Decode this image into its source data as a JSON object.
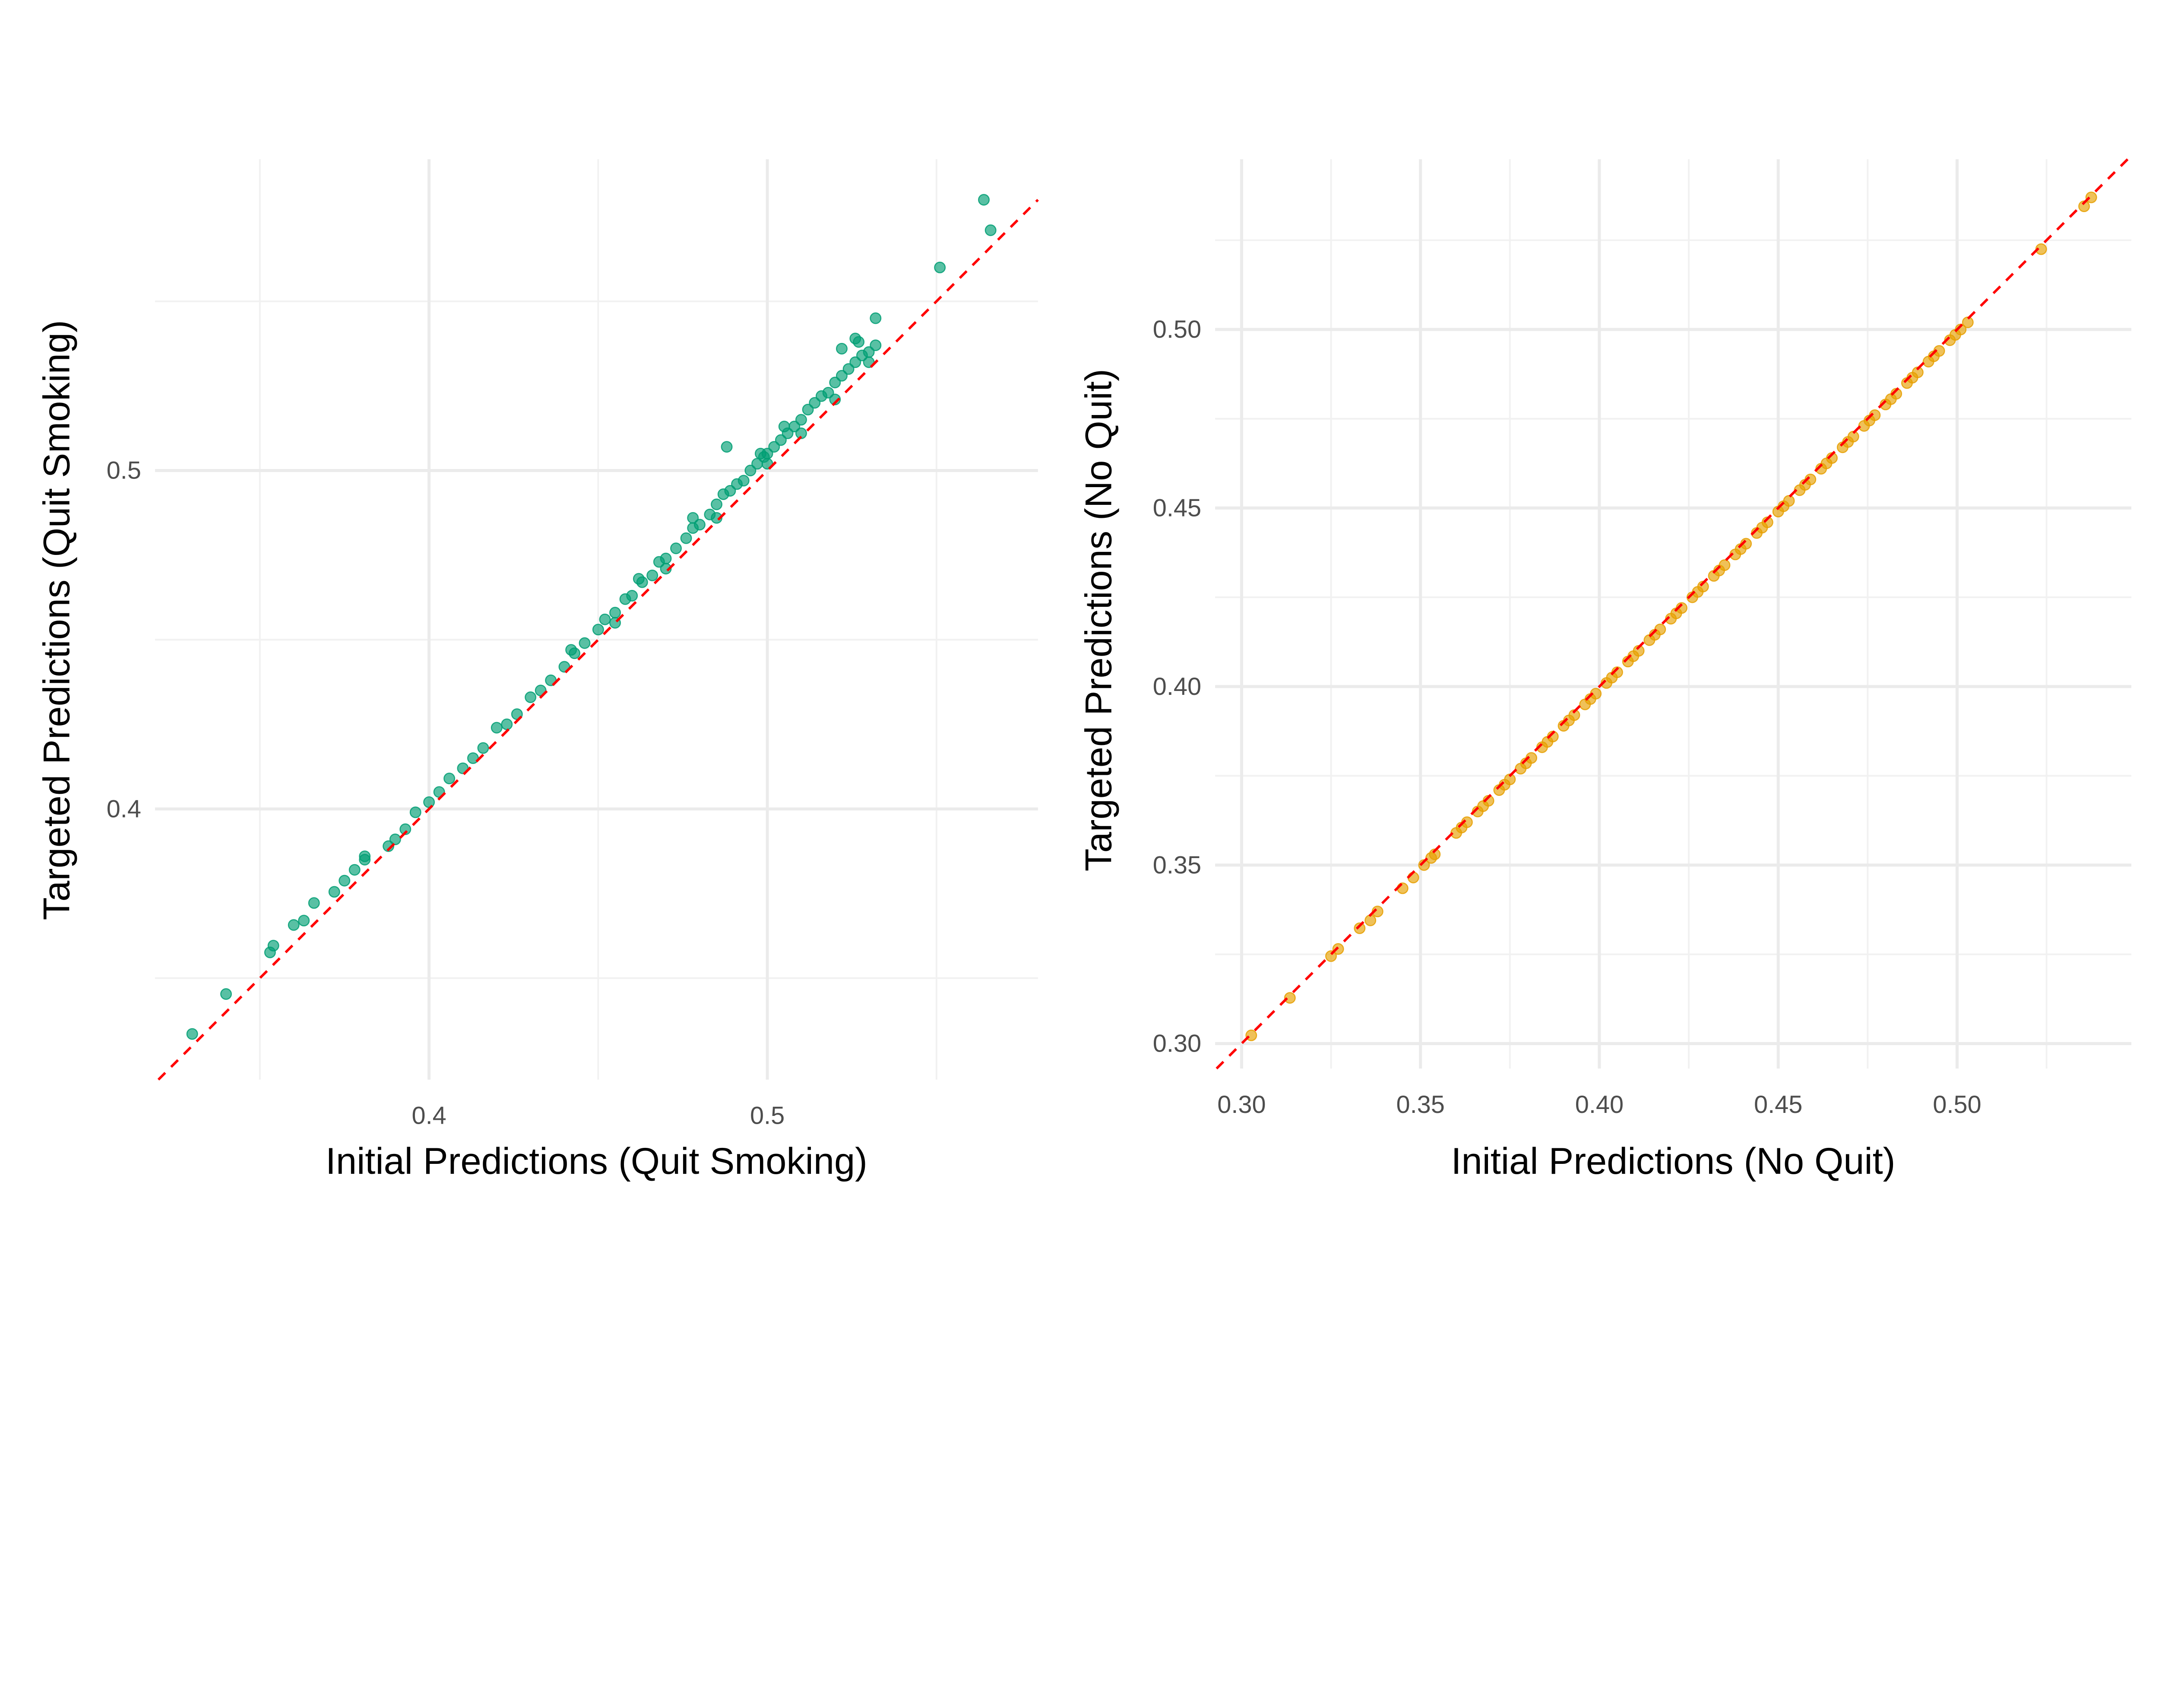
{
  "chart_data": [
    {
      "type": "scatter",
      "xlabel": "Initial Predictions (Quit Smoking)",
      "ylabel": "Targeted Predictions (Quit Smoking)",
      "xlim": [
        0.319,
        0.58
      ],
      "ylim": [
        0.32,
        0.592
      ],
      "x_ticks": [
        0.4,
        0.5
      ],
      "x_tick_labels": [
        "0.4",
        "0.5"
      ],
      "y_ticks": [
        0.4,
        0.5
      ],
      "y_tick_labels": [
        "0.4",
        "0.5"
      ],
      "x_minor": [
        0.35,
        0.45,
        0.55
      ],
      "y_minor": [
        0.35,
        0.45,
        0.55
      ],
      "grid": true,
      "color": "#009E73",
      "reference_line": {
        "slope": 1,
        "intercept": 0,
        "color": "#FF0000",
        "style": "dashed"
      },
      "points": [
        [
          0.33,
          0.3335
        ],
        [
          0.34,
          0.3453
        ],
        [
          0.353,
          0.3576
        ],
        [
          0.354,
          0.3596
        ],
        [
          0.36,
          0.3657
        ],
        [
          0.363,
          0.367
        ],
        [
          0.366,
          0.3722
        ],
        [
          0.372,
          0.3755
        ],
        [
          0.375,
          0.3788
        ],
        [
          0.378,
          0.382
        ],
        [
          0.381,
          0.386
        ],
        [
          0.381,
          0.385
        ],
        [
          0.388,
          0.389
        ],
        [
          0.39,
          0.391
        ],
        [
          0.393,
          0.394
        ],
        [
          0.396,
          0.399
        ],
        [
          0.4,
          0.402
        ],
        [
          0.403,
          0.405
        ],
        [
          0.406,
          0.409
        ],
        [
          0.41,
          0.412
        ],
        [
          0.413,
          0.415
        ],
        [
          0.416,
          0.418
        ],
        [
          0.42,
          0.424
        ],
        [
          0.423,
          0.425
        ],
        [
          0.426,
          0.428
        ],
        [
          0.43,
          0.433
        ],
        [
          0.433,
          0.435
        ],
        [
          0.436,
          0.438
        ],
        [
          0.44,
          0.442
        ],
        [
          0.443,
          0.446
        ],
        [
          0.446,
          0.449
        ],
        [
          0.45,
          0.453
        ],
        [
          0.452,
          0.456
        ],
        [
          0.455,
          0.458
        ],
        [
          0.458,
          0.462
        ],
        [
          0.46,
          0.463
        ],
        [
          0.463,
          0.467
        ],
        [
          0.466,
          0.469
        ],
        [
          0.468,
          0.473
        ],
        [
          0.47,
          0.474
        ],
        [
          0.473,
          0.477
        ],
        [
          0.476,
          0.48
        ],
        [
          0.478,
          0.483
        ],
        [
          0.48,
          0.484
        ],
        [
          0.483,
          0.487
        ],
        [
          0.485,
          0.49
        ],
        [
          0.487,
          0.493
        ],
        [
          0.489,
          0.494
        ],
        [
          0.491,
          0.496
        ],
        [
          0.493,
          0.497
        ],
        [
          0.495,
          0.5
        ],
        [
          0.497,
          0.502
        ],
        [
          0.499,
          0.504
        ],
        [
          0.5,
          0.505
        ],
        [
          0.502,
          0.507
        ],
        [
          0.504,
          0.509
        ],
        [
          0.506,
          0.511
        ],
        [
          0.508,
          0.513
        ],
        [
          0.51,
          0.515
        ],
        [
          0.512,
          0.518
        ],
        [
          0.514,
          0.52
        ],
        [
          0.516,
          0.522
        ],
        [
          0.518,
          0.523
        ],
        [
          0.52,
          0.526
        ],
        [
          0.522,
          0.528
        ],
        [
          0.524,
          0.53
        ],
        [
          0.526,
          0.532
        ],
        [
          0.528,
          0.534
        ],
        [
          0.53,
          0.535
        ],
        [
          0.532,
          0.537
        ],
        [
          0.455,
          0.455
        ],
        [
          0.47,
          0.471
        ],
        [
          0.485,
          0.486
        ],
        [
          0.5,
          0.502
        ],
        [
          0.51,
          0.511
        ],
        [
          0.52,
          0.521
        ],
        [
          0.53,
          0.532
        ],
        [
          0.488,
          0.507
        ],
        [
          0.505,
          0.513
        ],
        [
          0.527,
          0.538
        ],
        [
          0.522,
          0.536
        ],
        [
          0.526,
          0.539
        ],
        [
          0.532,
          0.545
        ],
        [
          0.442,
          0.447
        ],
        [
          0.462,
          0.468
        ],
        [
          0.478,
          0.486
        ],
        [
          0.498,
          0.505
        ],
        [
          0.551,
          0.56
        ],
        [
          0.564,
          0.58
        ],
        [
          0.566,
          0.571
        ]
      ]
    },
    {
      "type": "scatter",
      "xlabel": "Initial Predictions (No Quit)",
      "ylabel": "Targeted Predictions (No Quit)",
      "xlim": [
        0.2926,
        0.5487
      ],
      "ylim": [
        0.293,
        0.5477
      ],
      "x_ticks": [
        0.3,
        0.35,
        0.4,
        0.45,
        0.5
      ],
      "x_tick_labels": [
        "0.30",
        "0.35",
        "0.40",
        "0.45",
        "0.50"
      ],
      "y_ticks": [
        0.3,
        0.35,
        0.4,
        0.45,
        0.5
      ],
      "y_tick_labels": [
        "0.30",
        "0.35",
        "0.40",
        "0.45",
        "0.50"
      ],
      "x_minor": [
        0.325,
        0.375,
        0.425,
        0.475,
        0.525
      ],
      "y_minor": [
        0.325,
        0.375,
        0.425,
        0.475,
        0.525
      ],
      "grid": true,
      "color": "#E69F00",
      "reference_line": {
        "slope": 1,
        "intercept": 0,
        "color": "#FF0000",
        "style": "dashed"
      },
      "points": [
        [
          0.3027,
          0.3023
        ],
        [
          0.3135,
          0.3128
        ],
        [
          0.325,
          0.3245
        ],
        [
          0.327,
          0.3265
        ],
        [
          0.333,
          0.3323
        ],
        [
          0.336,
          0.3345
        ],
        [
          0.338,
          0.337
        ],
        [
          0.345,
          0.3435
        ],
        [
          0.348,
          0.3465
        ],
        [
          0.351,
          0.35
        ],
        [
          0.353,
          0.352
        ],
        [
          0.354,
          0.353
        ],
        [
          0.36,
          0.359
        ],
        [
          0.363,
          0.362
        ],
        [
          0.366,
          0.365
        ],
        [
          0.369,
          0.368
        ],
        [
          0.372,
          0.371
        ],
        [
          0.375,
          0.374
        ],
        [
          0.378,
          0.377
        ],
        [
          0.381,
          0.38
        ],
        [
          0.384,
          0.383
        ],
        [
          0.387,
          0.386
        ],
        [
          0.39,
          0.389
        ],
        [
          0.393,
          0.392
        ],
        [
          0.396,
          0.395
        ],
        [
          0.399,
          0.398
        ],
        [
          0.402,
          0.401
        ],
        [
          0.405,
          0.404
        ],
        [
          0.408,
          0.407
        ],
        [
          0.411,
          0.41
        ],
        [
          0.414,
          0.413
        ],
        [
          0.417,
          0.416
        ],
        [
          0.42,
          0.419
        ],
        [
          0.423,
          0.422
        ],
        [
          0.426,
          0.425
        ],
        [
          0.429,
          0.428
        ],
        [
          0.432,
          0.431
        ],
        [
          0.435,
          0.434
        ],
        [
          0.438,
          0.437
        ],
        [
          0.441,
          0.44
        ],
        [
          0.444,
          0.443
        ],
        [
          0.447,
          0.446
        ],
        [
          0.45,
          0.449
        ],
        [
          0.453,
          0.452
        ],
        [
          0.456,
          0.455
        ],
        [
          0.459,
          0.458
        ],
        [
          0.462,
          0.461
        ],
        [
          0.465,
          0.464
        ],
        [
          0.468,
          0.467
        ],
        [
          0.471,
          0.47
        ],
        [
          0.474,
          0.473
        ],
        [
          0.477,
          0.476
        ],
        [
          0.48,
          0.479
        ],
        [
          0.483,
          0.482
        ],
        [
          0.486,
          0.485
        ],
        [
          0.489,
          0.488
        ],
        [
          0.492,
          0.491
        ],
        [
          0.495,
          0.494
        ],
        [
          0.498,
          0.497
        ],
        [
          0.501,
          0.5
        ],
        [
          0.503,
          0.502
        ],
        [
          0.3615,
          0.3605
        ],
        [
          0.3675,
          0.3665
        ],
        [
          0.3735,
          0.3725
        ],
        [
          0.3795,
          0.3785
        ],
        [
          0.3855,
          0.3845
        ],
        [
          0.3915,
          0.3905
        ],
        [
          0.3975,
          0.3965
        ],
        [
          0.4035,
          0.4025
        ],
        [
          0.4095,
          0.4085
        ],
        [
          0.4155,
          0.4145
        ],
        [
          0.4215,
          0.4205
        ],
        [
          0.4275,
          0.4265
        ],
        [
          0.4335,
          0.4325
        ],
        [
          0.4395,
          0.4385
        ],
        [
          0.4455,
          0.4445
        ],
        [
          0.4515,
          0.4505
        ],
        [
          0.4575,
          0.4565
        ],
        [
          0.4635,
          0.4625
        ],
        [
          0.4695,
          0.4685
        ],
        [
          0.4755,
          0.4745
        ],
        [
          0.4815,
          0.4805
        ],
        [
          0.4875,
          0.4865
        ],
        [
          0.4935,
          0.4925
        ],
        [
          0.4995,
          0.4985
        ],
        [
          0.5235,
          0.5225
        ],
        [
          0.5355,
          0.5345
        ],
        [
          0.5375,
          0.537
        ]
      ]
    }
  ]
}
